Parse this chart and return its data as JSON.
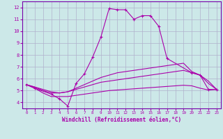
{
  "background_color": "#cce8e8",
  "grid_color": "#b0b0cc",
  "line_color": "#aa00aa",
  "spine_color": "#7700aa",
  "xlim": [
    -0.5,
    23.5
  ],
  "ylim": [
    3.5,
    12.5
  ],
  "xticks": [
    0,
    1,
    2,
    3,
    4,
    5,
    6,
    7,
    8,
    9,
    10,
    11,
    12,
    13,
    14,
    15,
    16,
    17,
    18,
    19,
    20,
    21,
    22,
    23
  ],
  "yticks": [
    4,
    5,
    6,
    7,
    8,
    9,
    10,
    11,
    12
  ],
  "xlabel": "Windchill (Refroidissement éolien,°C)",
  "main_x": [
    0,
    1,
    3,
    4,
    5,
    6,
    7,
    8,
    9,
    10,
    11,
    12,
    13,
    14,
    15,
    16,
    17,
    20,
    21,
    22,
    23
  ],
  "main_y": [
    5.5,
    5.2,
    4.7,
    4.3,
    3.7,
    5.6,
    6.4,
    7.8,
    9.5,
    11.9,
    11.8,
    11.8,
    11.0,
    11.3,
    11.3,
    10.4,
    7.7,
    6.5,
    6.3,
    5.1,
    5.1
  ],
  "upper_x": [
    0,
    1,
    2,
    3,
    4,
    5,
    6,
    7,
    8,
    9,
    10,
    11,
    12,
    13,
    14,
    15,
    16,
    17,
    18,
    19,
    20,
    21,
    22,
    23
  ],
  "upper_y": [
    5.5,
    5.3,
    5.1,
    4.9,
    4.8,
    4.9,
    5.2,
    5.5,
    5.8,
    6.1,
    6.3,
    6.5,
    6.6,
    6.7,
    6.8,
    6.9,
    7.0,
    7.1,
    7.2,
    7.3,
    6.6,
    6.3,
    5.8,
    5.1
  ],
  "mid_x": [
    0,
    1,
    2,
    3,
    4,
    5,
    6,
    7,
    8,
    9,
    10,
    11,
    12,
    13,
    14,
    15,
    16,
    17,
    18,
    19,
    20,
    21,
    22,
    23
  ],
  "mid_y": [
    5.5,
    5.3,
    5.0,
    4.8,
    4.8,
    4.9,
    5.1,
    5.3,
    5.5,
    5.7,
    5.8,
    5.9,
    6.0,
    6.1,
    6.2,
    6.3,
    6.4,
    6.5,
    6.6,
    6.7,
    6.5,
    6.3,
    5.6,
    5.1
  ],
  "low_x": [
    0,
    1,
    2,
    3,
    4,
    5,
    6,
    7,
    8,
    9,
    10,
    11,
    12,
    13,
    14,
    15,
    16,
    17,
    18,
    19,
    20,
    21,
    22,
    23
  ],
  "low_y": [
    5.5,
    5.2,
    4.8,
    4.5,
    4.5,
    4.5,
    4.6,
    4.7,
    4.8,
    4.9,
    5.0,
    5.05,
    5.1,
    5.15,
    5.2,
    5.25,
    5.3,
    5.35,
    5.4,
    5.45,
    5.4,
    5.2,
    5.05,
    5.1
  ]
}
